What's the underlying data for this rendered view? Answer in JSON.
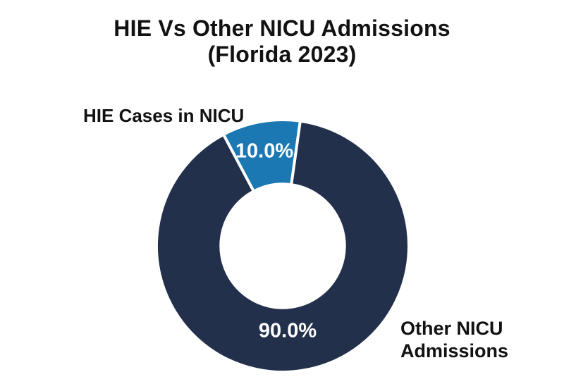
{
  "title": {
    "line1": "HIE Vs Other NICU Admissions",
    "line2": "(Florida 2023)"
  },
  "chart_data": {
    "type": "pie",
    "subtype": "donut",
    "title": "HIE Vs Other NICU Admissions (Florida 2023)",
    "categories": [
      "HIE Cases in NICU",
      "Other NICU Admissions"
    ],
    "values": [
      10.0,
      90.0
    ],
    "value_labels": [
      "10.0%",
      "90.0%"
    ],
    "colors": [
      "#1b78b3",
      "#22304c"
    ],
    "separator_color": "#ffffff",
    "label_color": "#121212",
    "pct_label_color": "#ffffff",
    "start_angle_deg": 82,
    "direction": "counterclockwise",
    "inner_radius_ratio": 0.49,
    "legend": "none",
    "grid": "off"
  }
}
